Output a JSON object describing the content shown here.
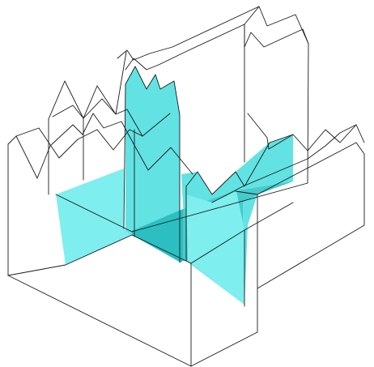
{
  "figure": {
    "type": "3d-wireframe-intersecting-sawtooth-blocks",
    "colors": {
      "background": "#ffffff",
      "edge": "#1a1a1a",
      "cut_plane_light": "#7eeeee",
      "cut_plane_mid": "#62e2e3",
      "cut_plane_dark": "#48c9ca",
      "cut_plane_overlap": "#2bbfc1"
    }
  }
}
